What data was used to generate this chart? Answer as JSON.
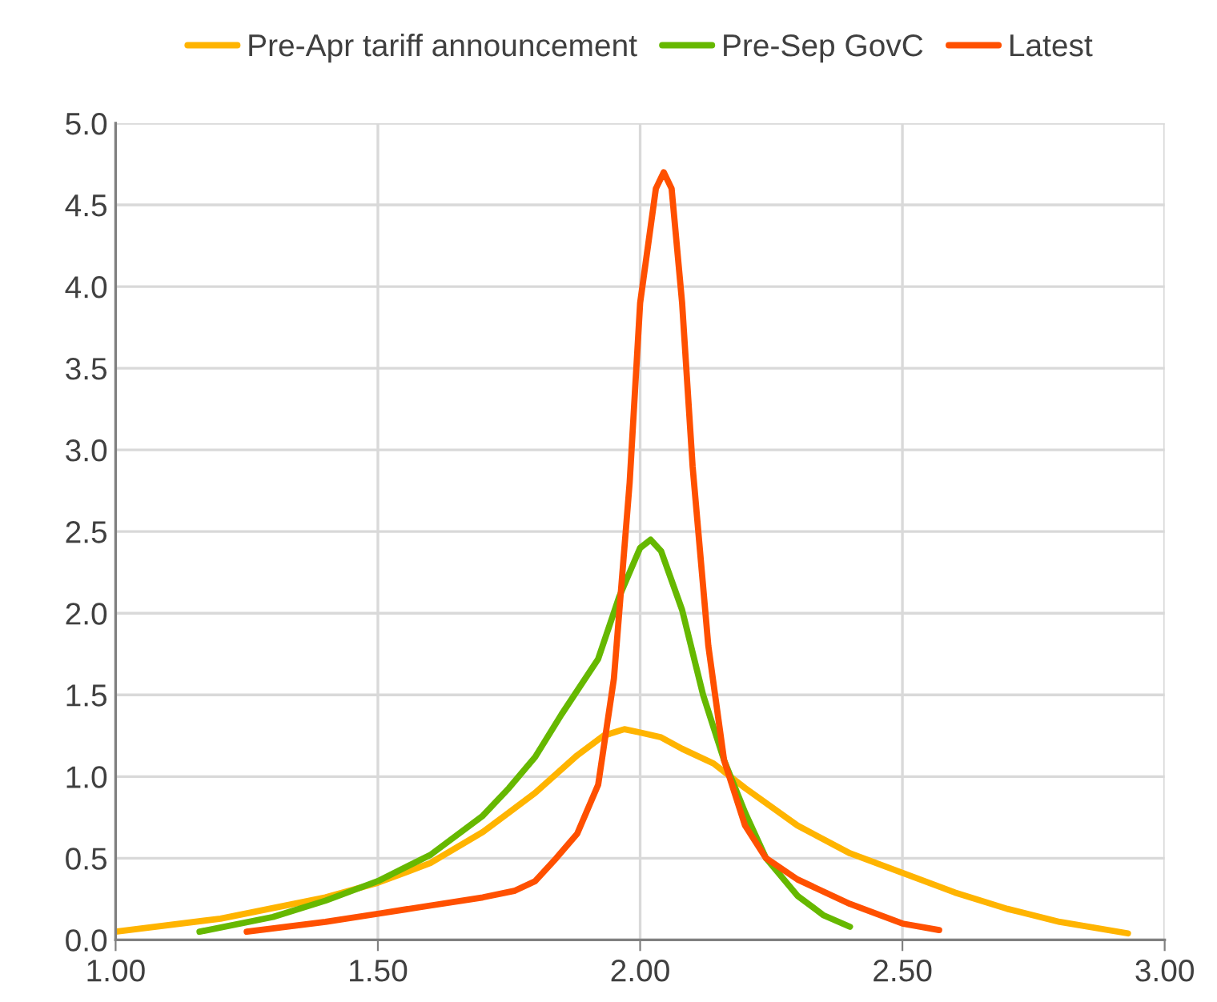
{
  "chart_data": {
    "type": "line",
    "xlim": [
      1.0,
      3.0
    ],
    "ylim": [
      0,
      5.0
    ],
    "xticks": [
      {
        "value": 1.0,
        "label": "1.00"
      },
      {
        "value": 1.5,
        "label": "1.50"
      },
      {
        "value": 2.0,
        "label": "2.00"
      },
      {
        "value": 2.5,
        "label": "2.50"
      },
      {
        "value": 3.0,
        "label": "3.00"
      }
    ],
    "yticks": [
      {
        "value": 0,
        "label": "0.0"
      },
      {
        "value": 0.5,
        "label": "0.5"
      },
      {
        "value": 1.0,
        "label": "1.0"
      },
      {
        "value": 1.5,
        "label": "1.5"
      },
      {
        "value": 2.0,
        "label": "2.0"
      },
      {
        "value": 2.5,
        "label": "2.5"
      },
      {
        "value": 3.0,
        "label": "3.0"
      },
      {
        "value": 3.5,
        "label": "3.5"
      },
      {
        "value": 4.0,
        "label": "4.0"
      },
      {
        "value": 4.5,
        "label": "4.5"
      },
      {
        "value": 5.0,
        "label": "5.0"
      }
    ],
    "grid": true,
    "legend": "top",
    "marker": "none",
    "line_style": "solid",
    "series": [
      {
        "name": "Pre-Apr tariff announcement",
        "color": "#ffb400",
        "x": [
          1.0,
          1.2,
          1.4,
          1.5,
          1.6,
          1.7,
          1.8,
          1.88,
          1.93,
          1.97,
          2.0,
          2.04,
          2.08,
          2.14,
          2.2,
          2.3,
          2.4,
          2.5,
          2.6,
          2.7,
          2.8,
          2.93
        ],
        "values": [
          0.05,
          0.13,
          0.26,
          0.35,
          0.47,
          0.66,
          0.9,
          1.13,
          1.25,
          1.29,
          1.27,
          1.24,
          1.17,
          1.08,
          0.93,
          0.7,
          0.53,
          0.41,
          0.29,
          0.19,
          0.11,
          0.04
        ]
      },
      {
        "name": "Pre-Sep GovC",
        "color": "#66b800",
        "x": [
          1.16,
          1.3,
          1.4,
          1.5,
          1.6,
          1.7,
          1.75,
          1.8,
          1.85,
          1.92,
          1.96,
          2.0,
          2.02,
          2.04,
          2.08,
          2.12,
          2.16,
          2.2,
          2.24,
          2.3,
          2.35,
          2.4
        ],
        "values": [
          0.05,
          0.14,
          0.24,
          0.36,
          0.52,
          0.76,
          0.93,
          1.12,
          1.38,
          1.72,
          2.1,
          2.4,
          2.45,
          2.38,
          2.02,
          1.5,
          1.1,
          0.78,
          0.5,
          0.27,
          0.15,
          0.08
        ]
      },
      {
        "name": "Latest",
        "color": "#ff5000",
        "x": [
          1.25,
          1.4,
          1.5,
          1.6,
          1.7,
          1.76,
          1.8,
          1.84,
          1.88,
          1.92,
          1.95,
          1.98,
          2.0,
          2.03,
          2.045,
          2.06,
          2.08,
          2.1,
          2.13,
          2.16,
          2.2,
          2.24,
          2.3,
          2.4,
          2.5,
          2.57
        ],
        "values": [
          0.05,
          0.11,
          0.16,
          0.21,
          0.26,
          0.3,
          0.36,
          0.5,
          0.65,
          0.95,
          1.6,
          2.8,
          3.9,
          4.6,
          4.7,
          4.6,
          3.9,
          2.9,
          1.8,
          1.1,
          0.7,
          0.5,
          0.37,
          0.22,
          0.1,
          0.06
        ]
      }
    ]
  }
}
